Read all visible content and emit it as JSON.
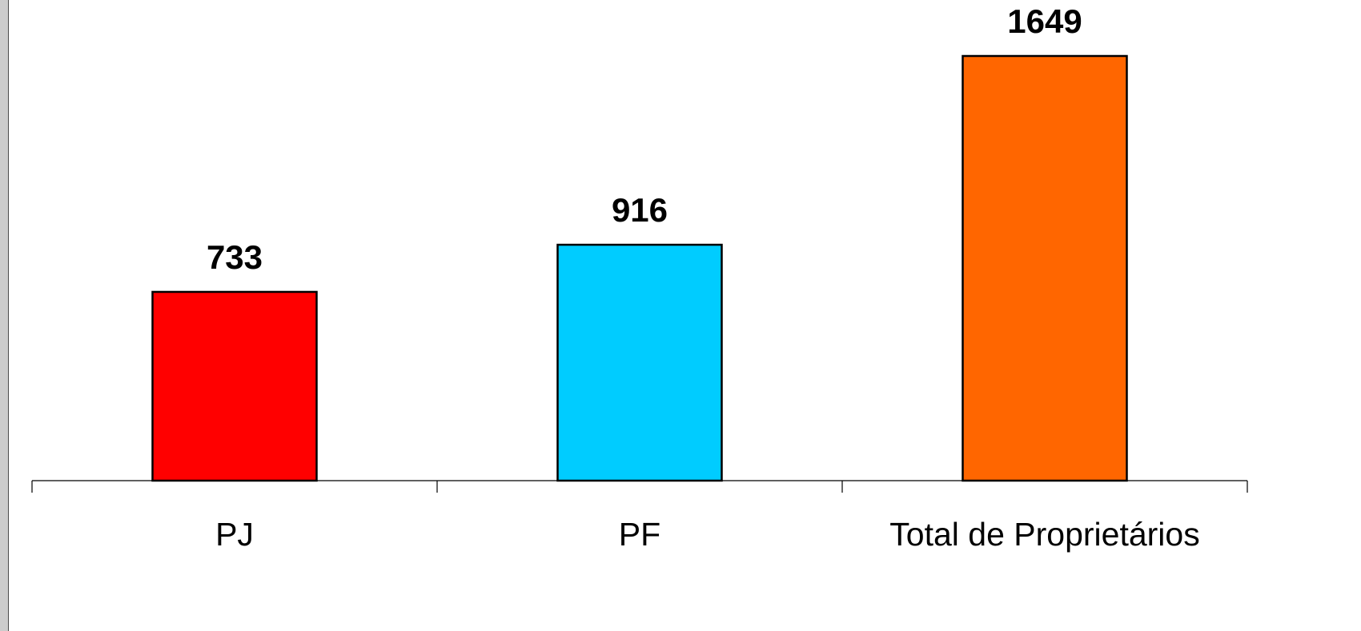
{
  "chart_data": {
    "type": "bar",
    "categories": [
      "PJ",
      "PF",
      "Total de Proprietários"
    ],
    "values": [
      733,
      916,
      1649
    ],
    "colors": [
      "#ff0000",
      "#00ccff",
      "#ff6600"
    ],
    "data_labels": [
      "733",
      "916",
      "1649"
    ],
    "title": "",
    "xlabel": "",
    "ylabel": "",
    "ylim": [
      0,
      1649
    ],
    "grid": false,
    "legend": "none"
  }
}
